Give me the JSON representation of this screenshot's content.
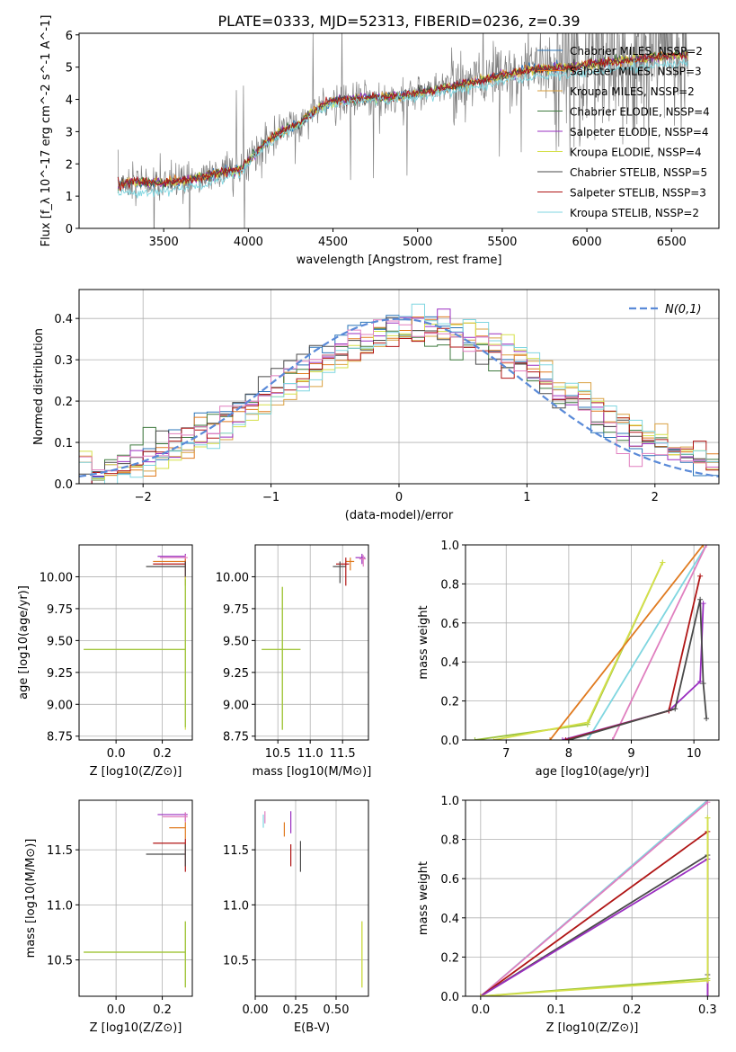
{
  "figure_title": "PLATE=0333, MJD=52313, FIBERID=0236, z=0.39",
  "colors": {
    "Chabrier MILES": "#2a74b8",
    "Salpeter MILES": "#e07a1f",
    "Kroupa MILES": "#d9a040",
    "Chabrier ELODIE": "#3f7a3f",
    "Salpeter ELODIE": "#9a2fc0",
    "Kroupa ELODIE": "#d5e04a",
    "Chabrier STELIB": "#4a4a4a",
    "Salpeter STELIB": "#b01515",
    "Kroupa STELIB": "#7fd6e0",
    "grid": "#b0b0b0",
    "data_spectrum": "#808080",
    "normal_curve": "#5a8ad8",
    "pink": "#e07fbf",
    "olive": "#9ac23a"
  },
  "chart_data": [
    {
      "id": "spectrum",
      "type": "line",
      "title": "PLATE=0333, MJD=52313, FIBERID=0236, z=0.39",
      "xlabel": "wavelength [Angstrom, rest frame]",
      "ylabel": "Flux [f_λ 10^-17 erg cm^-2 s^-1 A^-1]",
      "xlim": [
        3000,
        6780
      ],
      "ylim": [
        0,
        6.05
      ],
      "xticks": [
        3500,
        4000,
        4500,
        5000,
        5500,
        6000,
        6500
      ],
      "yticks": [
        0,
        1,
        2,
        3,
        4,
        5,
        6
      ],
      "legend_position": "upper right",
      "legend": [
        "Chabrier MILES, N_SSP=2",
        "Salpeter MILES, N_SSP=3",
        "Kroupa MILES, N_SSP=2",
        "Chabrier ELODIE, N_SSP=4",
        "Salpeter ELODIE, N_SSP=4",
        "Kroupa ELODIE, N_SSP=4",
        "Chabrier STELIB, N_SSP=5",
        "Salpeter STELIB, N_SSP=3",
        "Kroupa STELIB, N_SSP=2"
      ],
      "model_continuum": {
        "x": [
          3230,
          3300,
          3500,
          3700,
          3800,
          3950,
          4000,
          4100,
          4200,
          4300,
          4400,
          4500,
          4700,
          4900,
          5100,
          5300,
          5500,
          5700,
          5900,
          6100,
          6300,
          6500,
          6600
        ],
        "y": [
          1.35,
          1.45,
          1.4,
          1.55,
          1.7,
          1.8,
          2.1,
          2.65,
          3.0,
          3.25,
          3.7,
          3.95,
          4.05,
          4.1,
          4.3,
          4.5,
          4.75,
          4.95,
          5.0,
          5.15,
          5.25,
          5.35,
          5.4
        ]
      },
      "stelib_continuum": {
        "x": [
          3230,
          3300,
          3500,
          3700,
          3800,
          3950,
          4000,
          4100,
          4200,
          4300,
          4400,
          4500,
          4700,
          4900,
          5100,
          5300,
          5500,
          5700,
          5900,
          6100,
          6300,
          6500,
          6600
        ],
        "y": [
          1.1,
          1.1,
          1.15,
          1.3,
          1.45,
          1.7,
          2.0,
          2.55,
          2.9,
          3.2,
          3.6,
          3.85,
          3.95,
          4.0,
          4.15,
          4.35,
          4.55,
          4.7,
          4.75,
          4.9,
          5.0,
          5.1,
          5.15
        ]
      }
    },
    {
      "id": "residuals",
      "type": "step-histogram",
      "xlabel": "(data-model)/error",
      "ylabel": "Normed distribution",
      "xlim": [
        -2.5,
        2.5
      ],
      "ylim": [
        0,
        0.47
      ],
      "xticks": [
        -2,
        -1,
        0,
        1,
        2
      ],
      "yticks": [
        0.0,
        0.1,
        0.2,
        0.3,
        0.4
      ],
      "curve_label": "N(0,1)",
      "legend_position": "upper right",
      "bin_width": 0.1
    },
    {
      "id": "age-vs-Z",
      "type": "errorbar",
      "xlabel": "Z [log10(Z/Z⊙)]",
      "ylabel": "age [log10(age/yr)]",
      "xlim": [
        -0.16,
        0.33
      ],
      "ylim": [
        8.72,
        10.25
      ],
      "xticks": [
        0.0,
        0.2
      ],
      "yticks": [
        8.75,
        9.0,
        9.25,
        9.5,
        9.75,
        10.0
      ],
      "points": [
        {
          "x": 0.3,
          "y": 10.16,
          "x_lo": 0.18,
          "x_hi": 0.3,
          "y_lo": 10.12,
          "y_hi": 10.18,
          "c": "Salpeter ELODIE"
        },
        {
          "x": 0.3,
          "y": 10.15,
          "x_lo": 0.19,
          "x_hi": 0.31,
          "y_lo": 10.12,
          "y_hi": 10.17,
          "c": "pink"
        },
        {
          "x": 0.3,
          "y": 10.12,
          "x_lo": 0.16,
          "x_hi": 0.3,
          "y_lo": 10.05,
          "y_hi": 10.14,
          "c": "Salpeter MILES"
        },
        {
          "x": 0.3,
          "y": 10.1,
          "x_lo": 0.16,
          "x_hi": 0.3,
          "y_lo": 9.93,
          "y_hi": 10.12,
          "c": "Salpeter STELIB"
        },
        {
          "x": 0.3,
          "y": 10.08,
          "x_lo": 0.13,
          "x_hi": 0.3,
          "y_lo": 10.0,
          "y_hi": 10.12,
          "c": "Chabrier STELIB"
        },
        {
          "x": 0.3,
          "y": 9.43,
          "x_lo": -0.14,
          "x_hi": 0.3,
          "y_lo": 8.8,
          "y_hi": 10.0,
          "c": "Kroupa ELODIE"
        },
        {
          "x": 0.3,
          "y": 9.43,
          "x_lo": -0.14,
          "x_hi": 0.3,
          "y_lo": 8.82,
          "y_hi": 9.98,
          "c": "olive"
        }
      ]
    },
    {
      "id": "age-vs-mass",
      "type": "errorbar",
      "xlabel": "mass [log10(M/M⊙)]",
      "ylabel": "",
      "xlim": [
        10.15,
        11.9
      ],
      "ylim": [
        8.72,
        10.25
      ],
      "xticks": [
        10.5,
        11.0,
        11.5
      ],
      "yticks": [
        8.75,
        9.0,
        9.25,
        9.5,
        9.75,
        10.0
      ],
      "points": [
        {
          "x": 11.8,
          "y": 10.15,
          "x_lo": 11.7,
          "x_hi": 11.85,
          "y_lo": 10.1,
          "y_hi": 10.18,
          "c": "Salpeter ELODIE"
        },
        {
          "x": 11.82,
          "y": 10.14,
          "x_lo": 11.76,
          "x_hi": 11.86,
          "y_lo": 10.08,
          "y_hi": 10.17,
          "c": "pink"
        },
        {
          "x": 11.62,
          "y": 10.12,
          "x_lo": 11.55,
          "x_hi": 11.68,
          "y_lo": 10.05,
          "y_hi": 10.15,
          "c": "Salpeter MILES"
        },
        {
          "x": 11.55,
          "y": 10.1,
          "x_lo": 11.4,
          "x_hi": 11.6,
          "y_lo": 9.93,
          "y_hi": 10.15,
          "c": "Salpeter STELIB"
        },
        {
          "x": 11.46,
          "y": 10.08,
          "x_lo": 11.35,
          "x_hi": 11.55,
          "y_lo": 9.95,
          "y_hi": 10.12,
          "c": "Chabrier STELIB"
        },
        {
          "x": 10.57,
          "y": 9.43,
          "x_lo": 10.25,
          "x_hi": 10.85,
          "y_lo": 8.8,
          "y_hi": 9.92,
          "c": "Kroupa ELODIE"
        },
        {
          "x": 10.57,
          "y": 9.43,
          "x_lo": 10.25,
          "x_hi": 10.85,
          "y_lo": 8.8,
          "y_hi": 9.92,
          "c": "olive"
        }
      ]
    },
    {
      "id": "weight-vs-age",
      "type": "line",
      "xlabel": "age [log10(age/yr)]",
      "ylabel": "mass weight",
      "xlim": [
        6.35,
        10.4
      ],
      "ylim": [
        0,
        1.0
      ],
      "xticks": [
        7,
        8,
        9,
        10
      ],
      "yticks": [
        0.0,
        0.2,
        0.4,
        0.6,
        0.8,
        1.0
      ],
      "series": [
        {
          "c": "olive",
          "x": [
            6.5,
            8.3,
            9.5
          ],
          "y": [
            0.0,
            0.08,
            0.91
          ]
        },
        {
          "c": "Kroupa ELODIE",
          "x": [
            6.8,
            8.3,
            9.5
          ],
          "y": [
            0.0,
            0.09,
            0.91
          ]
        },
        {
          "c": "Salpeter MILES",
          "x": [
            7.7,
            10.15
          ],
          "y": [
            0.0,
            1.0
          ]
        },
        {
          "c": "Kroupa STELIB",
          "x": [
            8.3,
            10.2
          ],
          "y": [
            0.0,
            1.0
          ]
        },
        {
          "c": "pink",
          "x": [
            8.7,
            10.2
          ],
          "y": [
            0.0,
            1.0
          ]
        },
        {
          "c": "Salpeter ELODIE",
          "x": [
            7.9,
            9.6,
            10.1,
            10.15
          ],
          "y": [
            0.0,
            0.15,
            0.3,
            0.7
          ]
        },
        {
          "c": "Salpeter STELIB",
          "x": [
            7.95,
            9.6,
            10.1
          ],
          "y": [
            0.0,
            0.15,
            0.84
          ]
        },
        {
          "c": "Chabrier STELIB",
          "x": [
            8.0,
            9.7,
            10.1,
            10.15,
            10.2
          ],
          "y": [
            0.0,
            0.16,
            0.72,
            0.29,
            0.11
          ]
        }
      ]
    },
    {
      "id": "mass-vs-Z",
      "type": "errorbar",
      "xlabel": "Z [log10(Z/Z⊙)]",
      "ylabel": "mass [log10(M/M⊙)]",
      "xlim": [
        -0.16,
        0.33
      ],
      "ylim": [
        10.17,
        11.95
      ],
      "xticks": [
        0.0,
        0.2
      ],
      "yticks": [
        10.5,
        11.0,
        11.5
      ],
      "points": [
        {
          "x": 0.3,
          "y": 11.82,
          "x_lo": 0.18,
          "x_hi": 0.31,
          "y_lo": 11.76,
          "y_hi": 11.84,
          "c": "Salpeter ELODIE"
        },
        {
          "x": 0.3,
          "y": 11.8,
          "x_lo": 0.2,
          "x_hi": 0.31,
          "y_lo": 11.75,
          "y_hi": 11.84,
          "c": "pink"
        },
        {
          "x": 0.3,
          "y": 11.7,
          "x_lo": 0.23,
          "x_hi": 0.3,
          "y_lo": 11.6,
          "y_hi": 11.75,
          "c": "Salpeter MILES"
        },
        {
          "x": 0.3,
          "y": 11.56,
          "x_lo": 0.16,
          "x_hi": 0.3,
          "y_lo": 11.3,
          "y_hi": 11.6,
          "c": "Salpeter STELIB"
        },
        {
          "x": 0.3,
          "y": 11.46,
          "x_lo": 0.13,
          "x_hi": 0.3,
          "y_lo": 11.35,
          "y_hi": 11.55,
          "c": "Chabrier STELIB"
        },
        {
          "x": 0.3,
          "y": 10.57,
          "x_lo": -0.14,
          "x_hi": 0.3,
          "y_lo": 10.25,
          "y_hi": 10.85,
          "c": "Kroupa ELODIE"
        },
        {
          "x": 0.3,
          "y": 10.57,
          "x_lo": -0.14,
          "x_hi": 0.3,
          "y_lo": 10.25,
          "y_hi": 10.85,
          "c": "olive"
        }
      ]
    },
    {
      "id": "mass-vs-EBV",
      "type": "errorbar",
      "xlabel": "E(B-V)",
      "ylabel": "",
      "xlim": [
        0,
        0.7
      ],
      "ylim": [
        10.17,
        11.95
      ],
      "xticks": [
        0.0,
        0.25,
        0.5
      ],
      "yticks": [
        10.5,
        11.0,
        11.5
      ],
      "points": [
        {
          "x": 0.05,
          "y": 11.76,
          "y_lo": 11.7,
          "y_hi": 11.82,
          "c": "Kroupa STELIB"
        },
        {
          "x": 0.06,
          "y": 11.8,
          "y_lo": 11.74,
          "y_hi": 11.85,
          "c": "pink"
        },
        {
          "x": 0.18,
          "y": 11.7,
          "y_lo": 11.62,
          "y_hi": 11.75,
          "c": "Salpeter MILES"
        },
        {
          "x": 0.22,
          "y": 11.75,
          "y_lo": 11.65,
          "y_hi": 11.85,
          "c": "Salpeter ELODIE"
        },
        {
          "x": 0.22,
          "y": 11.45,
          "y_lo": 11.35,
          "y_hi": 11.55,
          "c": "Salpeter STELIB"
        },
        {
          "x": 0.28,
          "y": 11.45,
          "y_lo": 11.3,
          "y_hi": 11.58,
          "c": "Chabrier STELIB"
        },
        {
          "x": 0.66,
          "y": 10.55,
          "y_lo": 10.25,
          "y_hi": 10.85,
          "c": "olive"
        },
        {
          "x": 0.66,
          "y": 10.55,
          "y_lo": 10.25,
          "y_hi": 10.85,
          "c": "Kroupa ELODIE"
        }
      ]
    },
    {
      "id": "weight-vs-Z",
      "type": "line",
      "xlabel": "Z [log10(Z/Z⊙)]",
      "ylabel": "mass weight",
      "xlim": [
        -0.02,
        0.315
      ],
      "ylim": [
        0,
        1.0
      ],
      "xticks": [
        0.0,
        0.1,
        0.2,
        0.3
      ],
      "yticks": [
        0.0,
        0.2,
        0.4,
        0.6,
        0.8,
        1.0
      ],
      "series": [
        {
          "c": "Kroupa STELIB",
          "x": [
            0.0,
            0.3
          ],
          "y": [
            0.0,
            1.0
          ]
        },
        {
          "c": "pink",
          "x": [
            0.0,
            0.3
          ],
          "y": [
            0.0,
            0.99
          ]
        },
        {
          "c": "Salpeter STELIB",
          "x": [
            0.0,
            0.3,
            0.3
          ],
          "y": [
            0.0,
            0.84,
            0.0
          ]
        },
        {
          "c": "Chabrier STELIB",
          "x": [
            0.0,
            0.3,
            0.3
          ],
          "y": [
            0.0,
            0.72,
            0.11
          ]
        },
        {
          "c": "Salpeter ELODIE",
          "x": [
            0.0,
            0.3,
            0.3
          ],
          "y": [
            0.0,
            0.7,
            0.0
          ]
        },
        {
          "c": "olive",
          "x": [
            0.0,
            0.3,
            0.3
          ],
          "y": [
            0.0,
            0.09,
            0.91
          ]
        },
        {
          "c": "Kroupa ELODIE",
          "x": [
            0.0,
            0.3,
            0.3
          ],
          "y": [
            0.0,
            0.08,
            0.91
          ]
        }
      ]
    }
  ]
}
